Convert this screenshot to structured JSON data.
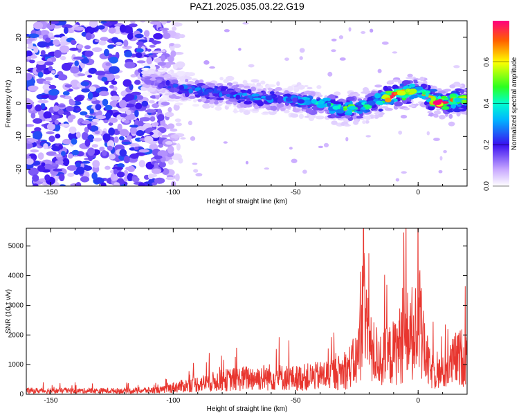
{
  "title": "PAZ1.2025.035.03.22.G19",
  "colors": {
    "snr_line": "#e8362f",
    "frame": "#000000"
  },
  "chart_data": [
    {
      "type": "heatmap",
      "xlabel": "Height of straight line (km)",
      "ylabel": "Frequency (Hz)",
      "xlim": [
        -160,
        20
      ],
      "ylim": [
        -25,
        25
      ],
      "xticks": [
        "-150",
        "-100",
        "-50",
        "0"
      ],
      "yticks": [
        "20",
        "10",
        "0",
        "-10",
        "-20"
      ],
      "colorbar": {
        "label": "Normalized spectral amplitude",
        "range": [
          0.0,
          0.8
        ],
        "ticks": [
          "0.0",
          "0.2",
          "0.4",
          "0.6"
        ]
      },
      "ridge": [
        {
          "x": -110,
          "f": 7,
          "amp": 0.12
        },
        {
          "x": -100,
          "f": 5,
          "amp": 0.25
        },
        {
          "x": -90,
          "f": 4,
          "amp": 0.3
        },
        {
          "x": -80,
          "f": 3,
          "amp": 0.3
        },
        {
          "x": -70,
          "f": 2,
          "amp": 0.3
        },
        {
          "x": -60,
          "f": 1.5,
          "amp": 0.3
        },
        {
          "x": -50,
          "f": 1,
          "amp": 0.3
        },
        {
          "x": -40,
          "f": 0,
          "amp": 0.4
        },
        {
          "x": -30,
          "f": -2,
          "amp": 0.5
        },
        {
          "x": -20,
          "f": -0.5,
          "amp": 0.4
        },
        {
          "x": -10,
          "f": 2.5,
          "amp": 0.75
        },
        {
          "x": 0,
          "f": 4,
          "amp": 0.5
        },
        {
          "x": 8,
          "f": 0,
          "amp": 0.8
        },
        {
          "x": 20,
          "f": 1.5,
          "amp": 0.5
        }
      ]
    },
    {
      "type": "line",
      "xlabel": "Height of straight line (km)",
      "ylabel": "SNR (10 * v/v)",
      "xlim": [
        -160,
        20
      ],
      "ylim": [
        0,
        5600
      ],
      "xticks": [
        "-150",
        "-100",
        "-50",
        "0"
      ],
      "yticks": [
        "0",
        "1000",
        "2000",
        "3000",
        "4000",
        "5000"
      ],
      "series": [
        {
          "x": [
            -160,
            -140,
            -120,
            -105,
            -100,
            -90,
            -80,
            -70,
            -60,
            -50,
            -40,
            -30,
            -25,
            -22,
            -20,
            -15,
            -10,
            -5,
            0,
            5,
            10,
            15,
            20
          ],
          "values": [
            150,
            150,
            150,
            180,
            300,
            450,
            600,
            700,
            750,
            700,
            800,
            1000,
            1500,
            3500,
            2000,
            1500,
            1800,
            2500,
            2800,
            1000,
            900,
            1500,
            1700
          ]
        }
      ]
    }
  ]
}
